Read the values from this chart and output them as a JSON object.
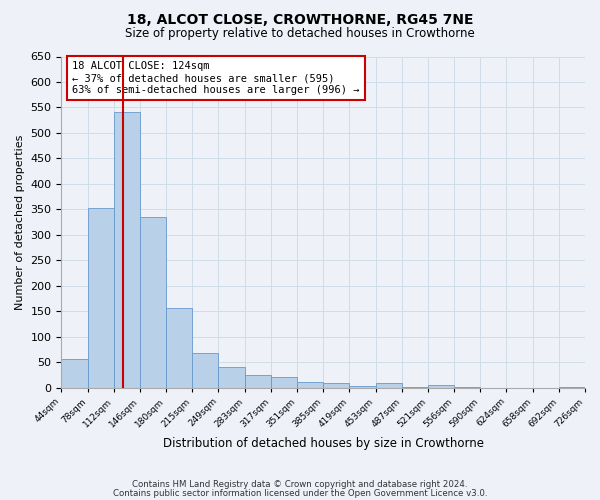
{
  "title": "18, ALCOT CLOSE, CROWTHORNE, RG45 7NE",
  "subtitle": "Size of property relative to detached houses in Crowthorne",
  "xlabel": "Distribution of detached houses by size in Crowthorne",
  "ylabel": "Number of detached properties",
  "bar_heights": [
    57,
    352,
    541,
    335,
    157,
    68,
    41,
    24,
    20,
    10,
    8,
    4,
    8,
    1,
    5,
    1,
    0,
    0,
    0,
    2
  ],
  "bin_labels": [
    "44sqm",
    "78sqm",
    "112sqm",
    "146sqm",
    "180sqm",
    "215sqm",
    "249sqm",
    "283sqm",
    "317sqm",
    "351sqm",
    "385sqm",
    "419sqm",
    "453sqm",
    "487sqm",
    "521sqm",
    "556sqm",
    "590sqm",
    "624sqm",
    "658sqm",
    "692sqm",
    "726sqm"
  ],
  "bar_color": "#b8d0e8",
  "bar_edge_color": "#6699cc",
  "grid_color": "#d0dde8",
  "background_color": "#eef2f8",
  "vline_color": "#cc0000",
  "annotation_text": "18 ALCOT CLOSE: 124sqm\n← 37% of detached houses are smaller (595)\n63% of semi-detached houses are larger (996) →",
  "annotation_box_color": "#ffffff",
  "annotation_box_edgecolor": "#cc0000",
  "ylim": [
    0,
    650
  ],
  "yticks": [
    0,
    50,
    100,
    150,
    200,
    250,
    300,
    350,
    400,
    450,
    500,
    550,
    600,
    650
  ],
  "footer_line1": "Contains HM Land Registry data © Crown copyright and database right 2024.",
  "footer_line2": "Contains public sector information licensed under the Open Government Licence v3.0."
}
